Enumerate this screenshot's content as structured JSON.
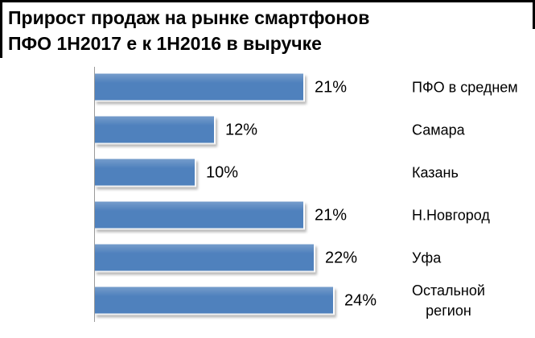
{
  "chart_data": {
    "type": "bar",
    "orientation": "horizontal",
    "title": "Прирост продаж на рынке смартфонов ПФО 1Н2017 е к 1Н2016 в выручке",
    "title_lines": [
      "Прирост продаж на рынке смартфонов",
      "ПФО 1Н2017 е к 1Н2016 в выручке"
    ],
    "categories": [
      "ПФО в среднем",
      "Самара",
      "Казань",
      "Н.Новгород",
      "Уфа",
      "Остальной\nрегион"
    ],
    "values": [
      21,
      12,
      10,
      21,
      22,
      24
    ],
    "value_labels": [
      "21%",
      "12%",
      "10%",
      "21%",
      "22%",
      "24%"
    ],
    "unit": "%",
    "bar_color": "#4f81bd",
    "axis_color": "#9a9a9a",
    "text_color": "#000000",
    "grid": false,
    "legend": false,
    "value_labels_position": "outside-end",
    "category_labels_position": "right"
  }
}
